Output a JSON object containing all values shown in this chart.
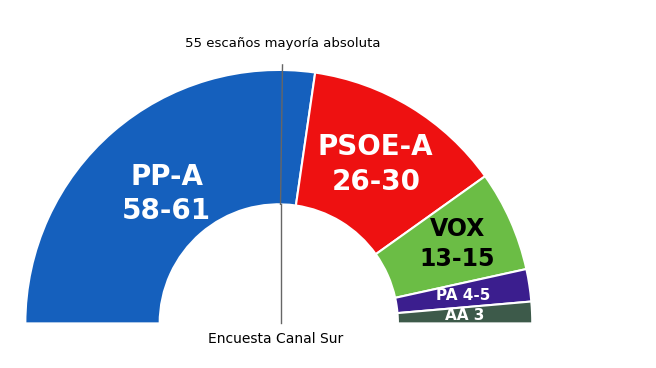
{
  "title": "55 escaños mayoría absoluta",
  "subtitle": "Encuesta Canal Sur",
  "parties": [
    "PP-A",
    "PSOE-A",
    "VOX",
    "PA",
    "AA"
  ],
  "labels_line1": [
    "PP-A",
    "PSOE-A",
    "VOX",
    "PA 4-5",
    "AA 3"
  ],
  "labels_line2": [
    "58-61",
    "26-30",
    "13-15",
    "",
    ""
  ],
  "seats_mid": [
    59.5,
    28,
    14,
    4.5,
    3
  ],
  "colors": [
    "#1560BD",
    "#EE1111",
    "#6BBD45",
    "#3B1E8E",
    "#3D5A4A"
  ],
  "majority_seats": 55,
  "total_seats": 109,
  "bg_color": "#FFFFFF",
  "label_colors": [
    "#FFFFFF",
    "#FFFFFF",
    "#000000",
    "#FFFFFF",
    "#FFFFFF"
  ],
  "label_fontsizes": [
    20,
    20,
    17,
    11,
    11
  ],
  "outer_r": 1.0,
  "inner_r": 0.47
}
